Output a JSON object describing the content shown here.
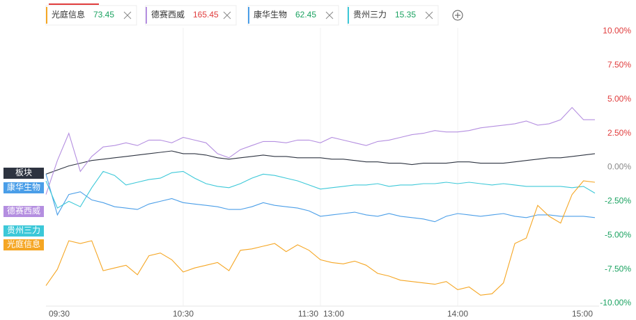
{
  "tabs": [
    {
      "name": "光庭信息",
      "price": 73.45,
      "color": "#f5a623",
      "price_color": "#1aa260"
    },
    {
      "name": "德赛西威",
      "price": 165.45,
      "color": "#b48ee0",
      "price_color": "#e03c3c"
    },
    {
      "name": "康华生物",
      "price": 62.45,
      "color": "#4a9ee8",
      "price_color": "#1aa260"
    },
    {
      "name": "贵州三力",
      "price": 15.35,
      "color": "#3cc8d8",
      "price_color": "#1aa260"
    }
  ],
  "chart_data": {
    "type": "line",
    "grid": true,
    "x": [
      "09:30",
      "09:35",
      "09:40",
      "09:45",
      "09:50",
      "09:55",
      "10:00",
      "10:05",
      "10:10",
      "10:15",
      "10:20",
      "10:25",
      "10:30",
      "10:35",
      "10:40",
      "10:45",
      "10:50",
      "10:55",
      "11:00",
      "11:05",
      "11:10",
      "11:15",
      "11:20",
      "11:25",
      "11:30",
      "13:05",
      "13:10",
      "13:15",
      "13:20",
      "13:25",
      "13:30",
      "13:35",
      "13:40",
      "13:45",
      "13:50",
      "13:55",
      "14:00",
      "14:05",
      "14:10",
      "14:15",
      "14:20",
      "14:25",
      "14:30",
      "14:35",
      "14:40",
      "14:45",
      "14:50",
      "14:55",
      "15:00"
    ],
    "xticks": [
      "09:30",
      "10:30",
      "11:30",
      "13:00",
      "14:00",
      "15:00"
    ],
    "ylim": [
      -10,
      10
    ],
    "yticks": [
      {
        "value": 10,
        "label": "10.00%"
      },
      {
        "value": 7.5,
        "label": "7.50%"
      },
      {
        "value": 5,
        "label": "5.00%"
      },
      {
        "value": 2.5,
        "label": "2.50%"
      },
      {
        "value": 0,
        "label": "0.00%"
      },
      {
        "value": -2.5,
        "label": "-2.50%"
      },
      {
        "value": -5,
        "label": "-5.00%"
      },
      {
        "value": -7.5,
        "label": "-7.50%"
      },
      {
        "value": -10,
        "label": "-10.00%"
      }
    ],
    "series": [
      {
        "name": "板块",
        "color": "#2d3340",
        "values": [
          -0.5,
          -0.2,
          0.1,
          0.3,
          0.5,
          0.6,
          0.7,
          0.8,
          0.9,
          1.0,
          1.1,
          1.2,
          1.0,
          1.0,
          0.9,
          0.7,
          0.6,
          0.7,
          0.8,
          0.9,
          0.8,
          0.8,
          0.7,
          0.7,
          0.7,
          0.6,
          0.6,
          0.5,
          0.4,
          0.4,
          0.3,
          0.3,
          0.2,
          0.3,
          0.3,
          0.3,
          0.4,
          0.4,
          0.3,
          0.3,
          0.3,
          0.4,
          0.5,
          0.6,
          0.7,
          0.7,
          0.8,
          0.9,
          1.0
        ]
      },
      {
        "name": "康华生物",
        "color": "#4a9ee8",
        "values": [
          -0.5,
          -3.5,
          -2.0,
          -1.8,
          -2.4,
          -2.6,
          -2.9,
          -3.0,
          -3.1,
          -2.7,
          -2.5,
          -2.3,
          -2.6,
          -2.7,
          -2.8,
          -2.9,
          -3.1,
          -3.1,
          -2.9,
          -2.6,
          -2.8,
          -2.9,
          -3.0,
          -3.2,
          -3.6,
          -3.5,
          -3.4,
          -3.3,
          -3.5,
          -3.6,
          -3.4,
          -3.6,
          -3.7,
          -3.8,
          -4.0,
          -3.6,
          -3.4,
          -3.5,
          -3.6,
          -3.5,
          -3.4,
          -3.6,
          -3.7,
          -3.5,
          -3.5,
          -3.6,
          -3.6,
          -3.6,
          -3.7
        ]
      },
      {
        "name": "德赛西威",
        "color": "#b48ee0",
        "values": [
          -2.0,
          0.5,
          2.5,
          -0.3,
          0.8,
          1.5,
          1.6,
          1.8,
          1.6,
          2.0,
          2.0,
          1.8,
          2.2,
          2.0,
          1.8,
          1.0,
          0.7,
          1.3,
          1.6,
          1.9,
          1.9,
          1.8,
          2.0,
          2.0,
          1.8,
          2.2,
          2.0,
          1.8,
          1.6,
          1.9,
          2.0,
          2.2,
          2.4,
          2.5,
          2.7,
          2.6,
          2.6,
          2.7,
          2.9,
          3.0,
          3.1,
          3.2,
          3.4,
          3.1,
          3.2,
          3.5,
          4.4,
          3.5,
          3.5
        ]
      },
      {
        "name": "贵州三力",
        "color": "#3cc8d8",
        "values": [
          -1.0,
          -3.0,
          -2.5,
          -2.9,
          -1.5,
          -0.3,
          -0.6,
          -1.3,
          -1.1,
          -0.9,
          -0.8,
          -0.4,
          -0.3,
          -0.8,
          -1.2,
          -1.4,
          -1.5,
          -1.2,
          -0.8,
          -0.5,
          -0.6,
          -0.8,
          -1.0,
          -1.3,
          -1.6,
          -1.5,
          -1.4,
          -1.3,
          -1.3,
          -1.2,
          -1.4,
          -1.3,
          -1.3,
          -1.2,
          -1.2,
          -1.1,
          -1.2,
          -1.1,
          -1.2,
          -1.3,
          -1.2,
          -1.3,
          -1.4,
          -1.4,
          -1.4,
          -1.4,
          -1.5,
          -1.4,
          -1.9
        ]
      },
      {
        "name": "光庭信息",
        "color": "#f5a623",
        "values": [
          -8.7,
          -7.5,
          -5.4,
          -5.6,
          -5.4,
          -7.6,
          -7.4,
          -7.2,
          -7.9,
          -6.5,
          -6.3,
          -6.8,
          -7.7,
          -7.4,
          -7.2,
          -7.0,
          -7.6,
          -6.1,
          -6.0,
          -5.8,
          -5.6,
          -6.2,
          -5.7,
          -6.1,
          -6.8,
          -7.0,
          -7.1,
          -6.9,
          -7.2,
          -7.8,
          -8.0,
          -8.3,
          -8.4,
          -8.5,
          -8.6,
          -8.4,
          -9.0,
          -8.8,
          -9.4,
          -9.3,
          -8.5,
          -5.6,
          -5.2,
          -2.8,
          -3.6,
          -4.1,
          -2.0,
          -1.0,
          -1.1
        ]
      }
    ]
  }
}
